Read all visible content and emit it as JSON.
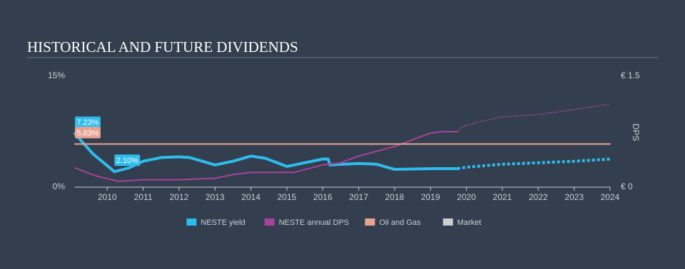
{
  "chart_data": {
    "type": "line",
    "title": "HISTORICAL AND FUTURE DIVIDENDS",
    "y2_label": "DPS",
    "xlim": [
      2009.1,
      2024
    ],
    "xticks": [
      2010,
      2011,
      2012,
      2013,
      2014,
      2015,
      2016,
      2017,
      2018,
      2019,
      2020,
      2021,
      2022,
      2023,
      2024
    ],
    "ylim": [
      0,
      15
    ],
    "yticks": [
      {
        "value": 0,
        "label": "0%"
      },
      {
        "value": 15,
        "label": "15%"
      }
    ],
    "y2lim": [
      0,
      1.5
    ],
    "y2ticks": [
      {
        "value": 0,
        "label": "€ 0"
      },
      {
        "value": 1.5,
        "label": "€ 1.5"
      }
    ],
    "legend": "bottom",
    "series": [
      {
        "name": "NESTE yield",
        "color": "#2ebcee",
        "width": 4,
        "segments": [
          {
            "style": "solid",
            "x": [
              2009.1,
              2009.6,
              2010.2,
              2010.6,
              2011,
              2011.5,
              2012,
              2012.3,
              2013,
              2013.5,
              2014,
              2014.4,
              2015,
              2015.5,
              2016,
              2016.15,
              2016.2,
              2017,
              2017.5,
              2018,
              2019,
              2019.75
            ],
            "values": [
              7.23,
              4.5,
              2.1,
              2.6,
              3.5,
              4.0,
              4.1,
              4.0,
              3.0,
              3.5,
              4.2,
              3.9,
              2.8,
              3.3,
              3.8,
              3.8,
              3.0,
              3.2,
              3.1,
              2.4,
              2.5,
              2.5
            ]
          },
          {
            "style": "dotted",
            "x": [
              2019.75,
              2020,
              2021,
              2022,
              2023,
              2024
            ],
            "values": [
              2.5,
              2.7,
              3.1,
              3.3,
              3.5,
              3.8
            ]
          }
        ],
        "labels": [
          {
            "x": 2009.1,
            "value": 7.23,
            "label": "7.23%"
          },
          {
            "x": 2010.2,
            "value": 2.1,
            "label": "2.10%"
          }
        ]
      },
      {
        "name": "NESTE annual DPS",
        "color": "#a8429e",
        "width": 2,
        "axis": "y2",
        "segments": [
          {
            "style": "solid",
            "x": [
              2009.1,
              2009.7,
              2010.3,
              2011,
              2012,
              2013,
              2013.5,
              2014,
              2015.2,
              2016,
              2016.5,
              2017,
              2018,
              2018.6,
              2019,
              2019.3,
              2019.75
            ],
            "values": [
              0.26,
              0.15,
              0.08,
              0.1,
              0.1,
              0.12,
              0.17,
              0.2,
              0.2,
              0.3,
              0.33,
              0.42,
              0.55,
              0.66,
              0.73,
              0.75,
              0.75
            ]
          },
          {
            "style": "dotted",
            "x": [
              2019.75,
              2019.9,
              2020.5,
              2021,
              2022,
              2023,
              2024
            ],
            "values": [
              0.75,
              0.82,
              0.9,
              0.95,
              0.98,
              1.05,
              1.12
            ]
          }
        ]
      },
      {
        "name": "Oil and Gas",
        "color": "#e9a291",
        "width": 2,
        "segments": [
          {
            "style": "solid",
            "x": [
              2009.1,
              2024
            ],
            "values": [
              5.83,
              5.83
            ]
          }
        ],
        "labels": [
          {
            "x": 2009.1,
            "value": 5.83,
            "label": "5.83%"
          }
        ]
      },
      {
        "name": "Market",
        "color": "#cccccc"
      }
    ]
  }
}
